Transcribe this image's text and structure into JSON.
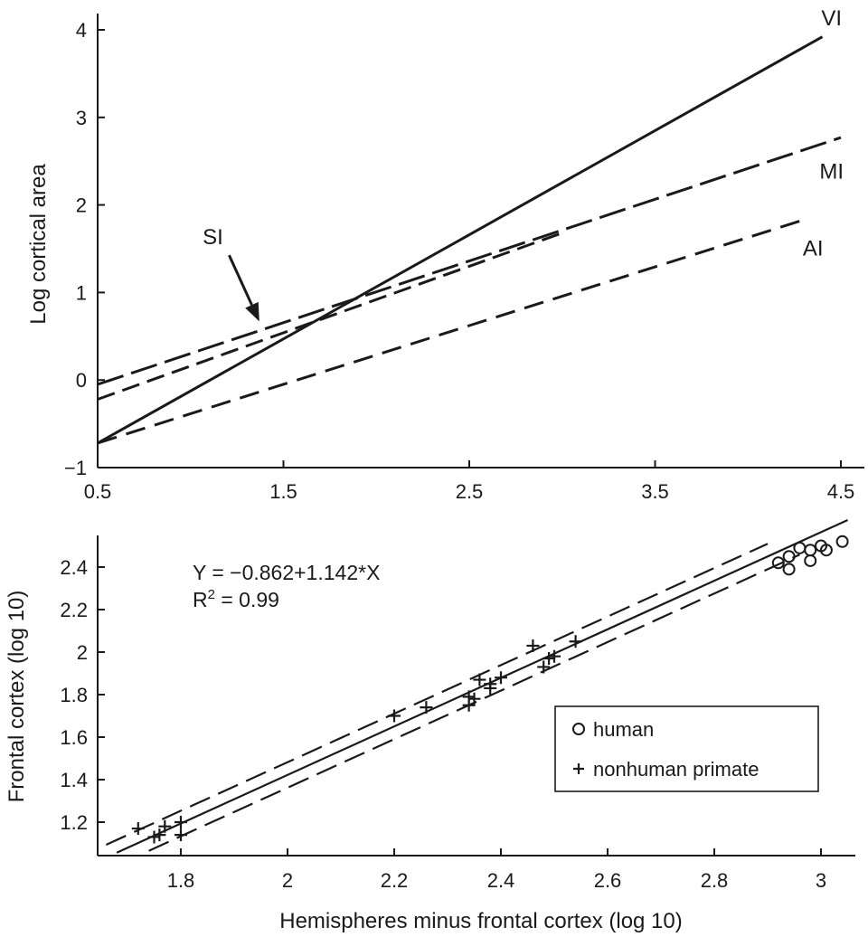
{
  "chart_data": [
    {
      "type": "line",
      "ylabel": "Log cortical area",
      "xlim": [
        0.5,
        4.5
      ],
      "ylim": [
        -1,
        4
      ],
      "x_ticks": [
        0.5,
        1.5,
        2.5,
        3.5,
        4.5
      ],
      "y_ticks": [
        -1,
        0,
        1,
        2,
        3,
        4
      ],
      "x_tick_labels": [
        "0.5",
        "1.5",
        "2.5",
        "3.5",
        "4.5"
      ],
      "y_tick_labels": [
        "−1",
        "0",
        "1",
        "2",
        "3",
        "4"
      ],
      "series": [
        {
          "name": "VI",
          "style": "solid",
          "x": [
            0.5,
            4.4
          ],
          "y": [
            -0.72,
            3.92
          ]
        },
        {
          "name": "MI",
          "style": "long-dash",
          "x": [
            0.5,
            4.5
          ],
          "y": [
            -0.05,
            2.77
          ]
        },
        {
          "name": "SI",
          "style": "medium-dash",
          "x": [
            0.5,
            3.0
          ],
          "y": [
            -0.22,
            1.68
          ]
        },
        {
          "name": "AI",
          "style": "dash",
          "x": [
            0.5,
            4.3
          ],
          "y": [
            -0.72,
            1.83
          ]
        }
      ],
      "annotations": [
        {
          "text": "VI",
          "x": 4.45,
          "y": 4.05
        },
        {
          "text": "MI",
          "x": 4.45,
          "y": 2.3
        },
        {
          "text": "AI",
          "x": 4.35,
          "y": 1.42
        },
        {
          "text": "SI",
          "x": 1.12,
          "y": 1.55,
          "arrow_to": [
            1.37,
            0.67
          ]
        }
      ],
      "grid": false
    },
    {
      "type": "scatter",
      "xlabel": "Hemispheres minus frontal cortex (log 10)",
      "ylabel": "Frontal cortex (log 10)",
      "xlim": [
        1.66,
        3.06
      ],
      "ylim": [
        1.06,
        2.56
      ],
      "x_ticks": [
        1.8,
        2.0,
        2.2,
        2.4,
        2.6,
        2.8,
        3.0
      ],
      "y_ticks": [
        1.2,
        1.4,
        1.6,
        1.8,
        2.0,
        2.2,
        2.4
      ],
      "x_tick_labels": [
        "1.8",
        "2",
        "2.2",
        "2.4",
        "2.6",
        "2.8",
        "3"
      ],
      "y_tick_labels": [
        "1.2",
        "1.4",
        "1.6",
        "1.8",
        "2",
        "2.2",
        "2.4"
      ],
      "equation": "Y = −0.862+1.142*X",
      "r2_prefix": "R",
      "r2_sup": "2",
      "r2_suffix": " = 0.99",
      "fit": {
        "intercept": -0.862,
        "slope": 1.142,
        "x_range": [
          1.68,
          3.05
        ],
        "band_offset": 0.06,
        "band_x_range": [
          1.66,
          2.9
        ]
      },
      "series": [
        {
          "name": "human",
          "marker": "circle",
          "points": [
            [
              2.92,
              2.42
            ],
            [
              2.94,
              2.39
            ],
            [
              2.94,
              2.45
            ],
            [
              2.96,
              2.49
            ],
            [
              2.98,
              2.48
            ],
            [
              2.98,
              2.43
            ],
            [
              3.0,
              2.5
            ],
            [
              3.01,
              2.48
            ],
            [
              3.04,
              2.52
            ]
          ]
        },
        {
          "name": "nonhuman primate",
          "marker": "plus",
          "points": [
            [
              1.72,
              1.17
            ],
            [
              1.75,
              1.13
            ],
            [
              1.76,
              1.14
            ],
            [
              1.77,
              1.18
            ],
            [
              1.8,
              1.2
            ],
            [
              1.8,
              1.14
            ],
            [
              2.2,
              1.7
            ],
            [
              2.26,
              1.74
            ],
            [
              2.34,
              1.75
            ],
            [
              2.34,
              1.79
            ],
            [
              2.35,
              1.78
            ],
            [
              2.36,
              1.87
            ],
            [
              2.38,
              1.83
            ],
            [
              2.38,
              1.85
            ],
            [
              2.4,
              1.88
            ],
            [
              2.46,
              2.03
            ],
            [
              2.48,
              1.93
            ],
            [
              2.49,
              1.97
            ],
            [
              2.5,
              1.98
            ],
            [
              2.54,
              2.05
            ]
          ]
        }
      ],
      "legend": {
        "position": "bottom-right",
        "items": [
          "human",
          "nonhuman primate"
        ]
      },
      "grid": false
    }
  ]
}
